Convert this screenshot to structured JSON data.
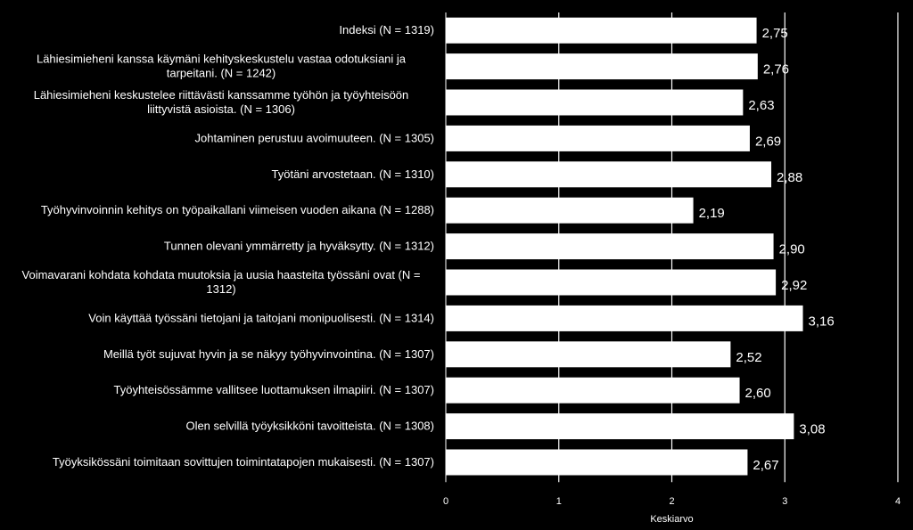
{
  "chart_data": {
    "type": "bar",
    "orientation": "horizontal",
    "xlabel": "Keskiarvo",
    "xlim": [
      0,
      4
    ],
    "xticks": [
      "0",
      "1",
      "2",
      "3",
      "4"
    ],
    "grid": true,
    "bar_color": "#ffffff",
    "background": "#000000",
    "categories": [
      [
        "Indeksi (N = 1319)"
      ],
      [
        "Lähiesimieheni kanssa käymäni kehityskeskustelu vastaa odotuksiani ja",
        "tarpeitani. (N = 1242)"
      ],
      [
        "Lähiesimieheni keskustelee riittävästi kanssamme työhön ja työyhteisöön",
        "liittyvistä asioista. (N = 1306)"
      ],
      [
        "Johtaminen perustuu avoimuuteen. (N = 1305)"
      ],
      [
        "Työtäni arvostetaan. (N = 1310)"
      ],
      [
        "Työhyvinvoinnin kehitys on työpaikallani viimeisen vuoden aikana (N = 1288)"
      ],
      [
        "Tunnen olevani ymmärretty ja hyväksytty. (N = 1312)"
      ],
      [
        "Voimavarani kohdata kohdata muutoksia ja uusia haasteita työssäni ovat (N =",
        "1312)"
      ],
      [
        "Voin käyttää työssäni tietojani ja taitojani monipuolisesti. (N = 1314)"
      ],
      [
        "Meillä työt sujuvat hyvin ja se näkyy työhyvinvointina. (N = 1307)"
      ],
      [
        "Työyhteisössämme vallitsee luottamuksen ilmapiiri. (N = 1307)"
      ],
      [
        "Olen selvillä työyksikköni tavoitteista.  (N = 1308)"
      ],
      [
        "Työyksikössäni toimitaan sovittujen toimintatapojen mukaisesti. (N = 1307)"
      ]
    ],
    "values": [
      2.75,
      2.76,
      2.63,
      2.69,
      2.88,
      2.19,
      2.9,
      2.92,
      3.16,
      2.52,
      2.6,
      3.08,
      2.67
    ],
    "value_labels": [
      "2,75",
      "2,76",
      "2,63",
      "2,69",
      "2,88",
      "2,19",
      "2,90",
      "2,92",
      "3,16",
      "2,52",
      "2,60",
      "3,08",
      "2,67"
    ]
  }
}
